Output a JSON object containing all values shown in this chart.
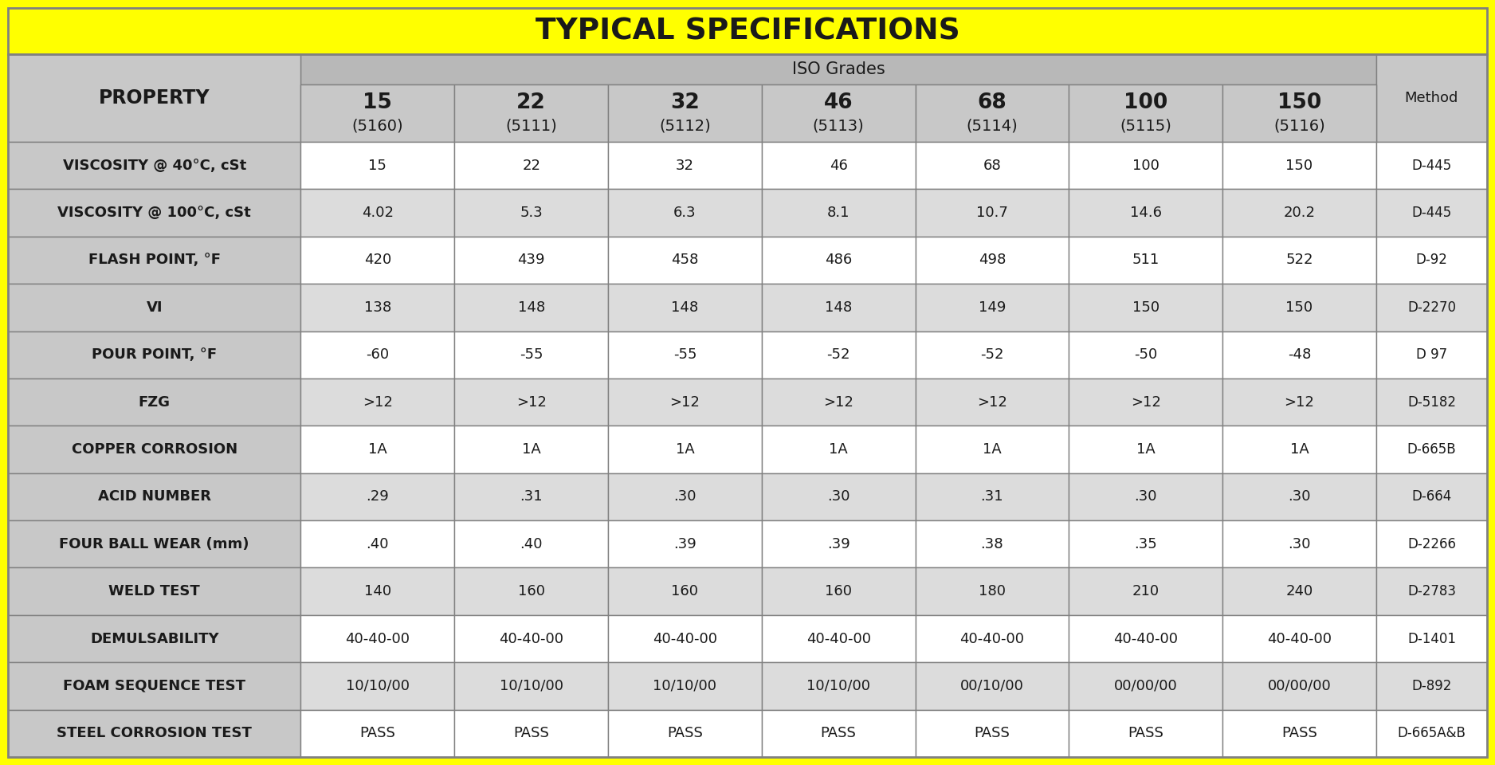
{
  "title": "TYPICAL SPECIFICATIONS",
  "header_iso": "ISO Grades",
  "col_headers_line1": [
    "15",
    "22",
    "32",
    "46",
    "68",
    "100",
    "150"
  ],
  "col_headers_line2": [
    "(5160)",
    "(5111)",
    "(5112)",
    "(5113)",
    "(5114)",
    "(5115)",
    "(5116)"
  ],
  "method_header": "Method",
  "property_header": "PROPERTY",
  "rows": [
    [
      "VISCOSITY @ 40°C, cSt",
      "15",
      "22",
      "32",
      "46",
      "68",
      "100",
      "150",
      "D-445"
    ],
    [
      "VISCOSITY @ 100°C, cSt",
      "4.02",
      "5.3",
      "6.3",
      "8.1",
      "10.7",
      "14.6",
      "20.2",
      "D-445"
    ],
    [
      "FLASH POINT, °F",
      "420",
      "439",
      "458",
      "486",
      "498",
      "511",
      "522",
      "D-92"
    ],
    [
      "VI",
      "138",
      "148",
      "148",
      "148",
      "149",
      "150",
      "150",
      "D-2270"
    ],
    [
      "POUR POINT, °F",
      "-60",
      "-55",
      "-55",
      "-52",
      "-52",
      "-50",
      "-48",
      "D 97"
    ],
    [
      "FZG",
      ">12",
      ">12",
      ">12",
      ">12",
      ">12",
      ">12",
      ">12",
      "D-5182"
    ],
    [
      "COPPER CORROSION",
      "1A",
      "1A",
      "1A",
      "1A",
      "1A",
      "1A",
      "1A",
      "D-665B"
    ],
    [
      "ACID NUMBER",
      ".29",
      ".31",
      ".30",
      ".30",
      ".31",
      ".30",
      ".30",
      "D-664"
    ],
    [
      "FOUR BALL WEAR (mm)",
      ".40",
      ".40",
      ".39",
      ".39",
      ".38",
      ".35",
      ".30",
      "D-2266"
    ],
    [
      "WELD TEST",
      "140",
      "160",
      "160",
      "160",
      "180",
      "210",
      "240",
      "D-2783"
    ],
    [
      "DEMULSABILITY",
      "40-40-00",
      "40-40-00",
      "40-40-00",
      "40-40-00",
      "40-40-00",
      "40-40-00",
      "40-40-00",
      "D-1401"
    ],
    [
      "FOAM SEQUENCE TEST",
      "10/10/00",
      "10/10/00",
      "10/10/00",
      "10/10/00",
      "00/10/00",
      "00/00/00",
      "00/00/00",
      "D-892"
    ],
    [
      "STEEL CORROSION TEST",
      "PASS",
      "PASS",
      "PASS",
      "PASS",
      "PASS",
      "PASS",
      "PASS",
      "D-665A&B"
    ]
  ],
  "yellow": "#FFFF00",
  "light_gray": "#C8C8C8",
  "mid_gray": "#B8B8B8",
  "row_bg_even": "#FFFFFF",
  "row_bg_odd": "#DCDCDC",
  "border_color": "#808080",
  "text_color": "#1a1a1a",
  "fig_w": 18.76,
  "fig_h": 9.6,
  "dpi": 100
}
